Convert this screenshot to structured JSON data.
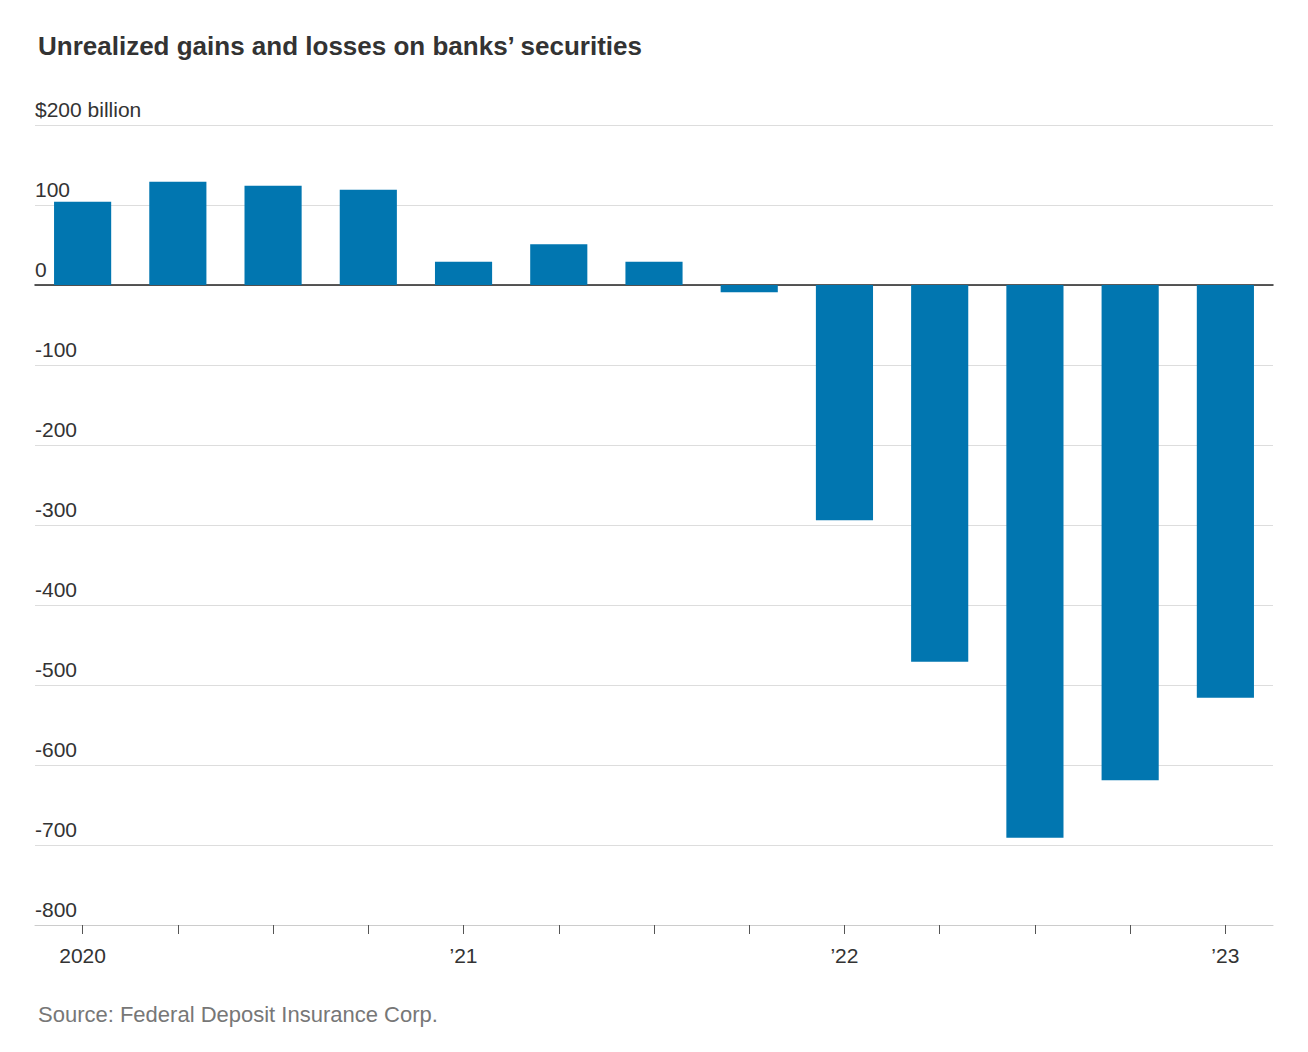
{
  "chart_data": {
    "type": "bar",
    "title": "Unrealized gains and losses on banks’ securities",
    "source": "Source: Federal Deposit Insurance Corp.",
    "categories": [
      "2020",
      null,
      null,
      null,
      "’21",
      null,
      null,
      null,
      "’22",
      null,
      null,
      null,
      "’23"
    ],
    "values": [
      104,
      129,
      124,
      119,
      29,
      51,
      29,
      -9,
      -294,
      -471,
      -691,
      -619,
      -516
    ],
    "color": "#0176b0",
    "ylim": [
      -800,
      200
    ],
    "yticks": [
      -800,
      -700,
      -600,
      -500,
      -400,
      -300,
      -200,
      -100,
      0,
      100,
      {
        "value": 200,
        "label": "$200 billion"
      }
    ],
    "grid": true
  }
}
